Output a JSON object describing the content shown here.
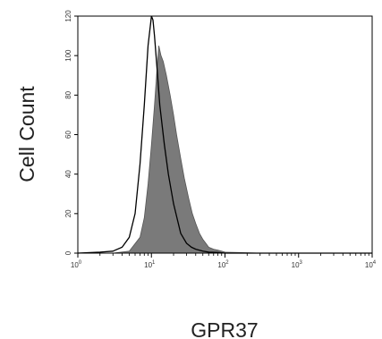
{
  "chart_data": {
    "type": "area",
    "xlabel": "GPR37",
    "ylabel": "Cell Count",
    "xscale": "log",
    "xlim": [
      1,
      10000
    ],
    "ylim": [
      0,
      120
    ],
    "x_ticks": [
      {
        "base": "10",
        "exp": "0",
        "value": 1
      },
      {
        "base": "10",
        "exp": "1",
        "value": 10
      },
      {
        "base": "10",
        "exp": "2",
        "value": 100
      },
      {
        "base": "10",
        "exp": "3",
        "value": 1000
      },
      {
        "base": "10",
        "exp": "4",
        "value": 10000
      }
    ],
    "y_ticks": [
      "0",
      "20",
      "40",
      "60",
      "80",
      "100",
      "120"
    ],
    "series": [
      {
        "style": "filled",
        "color": "#7a7a7a",
        "x": [
          1,
          3,
          5,
          7,
          8,
          9,
          10,
          11,
          12,
          12.6,
          13.5,
          14.5,
          16,
          18,
          20,
          22,
          25,
          28,
          32,
          36,
          40,
          45,
          50,
          55,
          60,
          70,
          80,
          90,
          100,
          150,
          300,
          1000,
          10000
        ],
        "y": [
          0,
          0,
          1,
          8,
          18,
          35,
          55,
          75,
          95,
          105,
          100,
          97,
          90,
          80,
          70,
          60,
          48,
          38,
          28,
          20,
          15,
          10,
          7,
          5,
          3,
          2,
          1.5,
          1,
          0.5,
          0.3,
          0,
          0,
          0
        ]
      },
      {
        "style": "outline",
        "color": "#000000",
        "x": [
          1,
          2,
          3,
          4,
          5,
          6,
          7,
          8,
          9,
          10,
          10.5,
          11,
          12,
          13,
          15,
          17,
          20,
          25,
          30,
          35,
          40,
          50,
          60,
          80,
          100,
          200,
          1000,
          10000
        ],
        "y": [
          0,
          0.5,
          1,
          3,
          8,
          20,
          45,
          75,
          105,
          120,
          118,
          110,
          92,
          75,
          55,
          40,
          25,
          10,
          5,
          3,
          2,
          1,
          0.5,
          0.3,
          0,
          0,
          0,
          0
        ]
      }
    ]
  }
}
